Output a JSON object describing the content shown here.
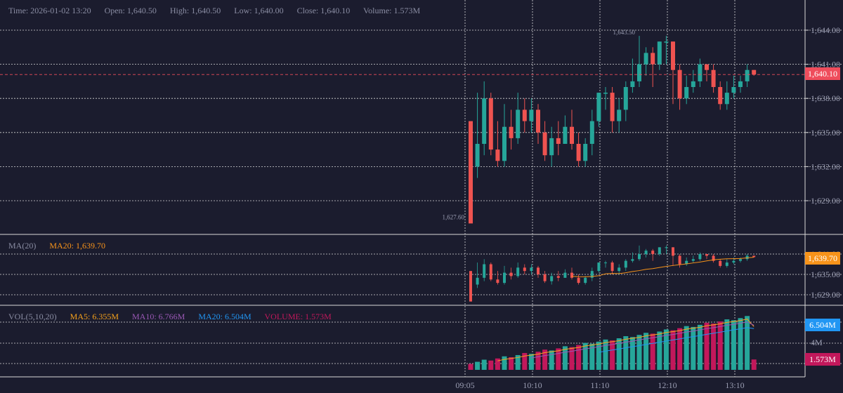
{
  "header": {
    "time": "Time: 2026-01-02 13:20",
    "open": "Open: 1,640.50",
    "high": "High: 1,640.50",
    "low": "Low: 1,640.00",
    "close": "Close: 1,640.10",
    "volume": "Volume: 1.573M"
  },
  "ma_panel": {
    "label": "MA(20)",
    "ma20": "MA20: 1,639.70",
    "y_ticks": [
      "1,641.00",
      "1,635.00",
      "1,629.00"
    ],
    "last_tag": "1,639.70"
  },
  "vol_panel": {
    "label": "VOL(5,10,20)",
    "ma5": "MA5: 6.355M",
    "ma10": "MA10: 6.766M",
    "ma20": "MA20: 6.504M",
    "volume": "VOLUME: 1.573M",
    "y_tick": "4M",
    "ma20_tag": "6.504M",
    "volume_tag": "1.573M"
  },
  "price_axis": {
    "ticks": [
      "1,644.00",
      "1,641.00",
      "1,638.00",
      "1,635.00",
      "1,632.00",
      "1,629.00"
    ],
    "last_price_tag": "1,640.10"
  },
  "annotations": {
    "high_mark": "1,643.50",
    "low_mark": "1,627.60"
  },
  "time_axis": [
    "09:05",
    "10:10",
    "11:10",
    "12:10",
    "13:10"
  ],
  "colors": {
    "up": "#26a69a",
    "down": "#ef5350",
    "background": "#1b1c2e",
    "grid": "#d8d8d8",
    "ma20_price": "#f7931a",
    "vol_ma5": "#f7a21b",
    "vol_ma10": "#9b59b6",
    "vol_ma20": "#2196f3",
    "vol_label": "#c2185b"
  },
  "chart_data": {
    "type": "candlestick",
    "candles": [
      [
        1636.0,
        1627.0,
        1632.0,
        1627.6
      ],
      [
        1632.0,
        1634.0,
        1638.5,
        1631.0
      ],
      [
        1634.0,
        1638.0,
        1639.5,
        1633.0
      ],
      [
        1638.0,
        1633.5,
        1638.5,
        1633.0
      ],
      [
        1633.5,
        1632.5,
        1636.0,
        1632.0
      ],
      [
        1632.5,
        1635.5,
        1637.5,
        1632.0
      ],
      [
        1635.5,
        1634.5,
        1637.0,
        1633.5
      ],
      [
        1634.5,
        1637.0,
        1638.5,
        1634.0
      ],
      [
        1637.0,
        1636.0,
        1638.0,
        1635.0
      ],
      [
        1636.0,
        1637.0,
        1638.0,
        1635.0
      ],
      [
        1637.0,
        1635.0,
        1637.5,
        1634.0
      ],
      [
        1635.0,
        1633.0,
        1636.0,
        1632.5
      ],
      [
        1633.0,
        1634.5,
        1635.5,
        1632.0
      ],
      [
        1634.5,
        1634.0,
        1636.0,
        1633.0
      ],
      [
        1634.0,
        1635.5,
        1636.5,
        1634.0
      ],
      [
        1635.5,
        1634.0,
        1637.0,
        1633.5
      ],
      [
        1634.0,
        1632.5,
        1635.0,
        1632.0
      ],
      [
        1632.5,
        1634.0,
        1634.5,
        1632.0
      ],
      [
        1634.0,
        1636.0,
        1637.0,
        1633.0
      ],
      [
        1636.0,
        1638.5,
        1638.5,
        1635.5
      ],
      [
        1638.5,
        1638.5,
        1639.0,
        1637.0
      ],
      [
        1638.5,
        1636.0,
        1639.0,
        1635.0
      ],
      [
        1636.0,
        1637.0,
        1638.0,
        1635.0
      ],
      [
        1637.0,
        1639.0,
        1639.5,
        1636.0
      ],
      [
        1639.0,
        1639.5,
        1641.5,
        1638.5
      ],
      [
        1639.5,
        1641.0,
        1643.5,
        1639.0
      ],
      [
        1641.0,
        1642.0,
        1642.5,
        1640.0
      ],
      [
        1642.0,
        1641.0,
        1642.5,
        1639.0
      ],
      [
        1641.0,
        1643.0,
        1643.0,
        1640.5
      ],
      [
        1643.0,
        1643.0,
        1643.5,
        1641.0
      ],
      [
        1643.0,
        1640.5,
        1643.0,
        1637.5
      ],
      [
        1640.5,
        1638.0,
        1641.0,
        1637.0
      ],
      [
        1638.0,
        1639.0,
        1640.0,
        1637.5
      ],
      [
        1639.0,
        1639.5,
        1640.5,
        1638.5
      ],
      [
        1639.5,
        1641.0,
        1641.5,
        1639.0
      ],
      [
        1641.0,
        1640.5,
        1641.0,
        1639.5
      ],
      [
        1640.5,
        1639.0,
        1641.0,
        1638.5
      ],
      [
        1639.0,
        1637.5,
        1639.5,
        1637.0
      ],
      [
        1637.5,
        1638.5,
        1639.5,
        1637.0
      ],
      [
        1638.5,
        1639.0,
        1640.0,
        1638.0
      ],
      [
        1639.0,
        1639.5,
        1640.0,
        1638.5
      ],
      [
        1639.5,
        1640.5,
        1641.0,
        1639.0
      ],
      [
        1640.5,
        1640.1,
        1640.5,
        1640.0
      ]
    ],
    "x_labels": [
      "09:05",
      "10:10",
      "11:10",
      "12:10",
      "13:10"
    ],
    "ylim": [
      1626,
      1646
    ],
    "ma20_last": 1639.7,
    "volume_last": 1.573,
    "volume_ma5": 6.355,
    "volume_ma10": 6.766,
    "volume_ma20": 6.504
  }
}
